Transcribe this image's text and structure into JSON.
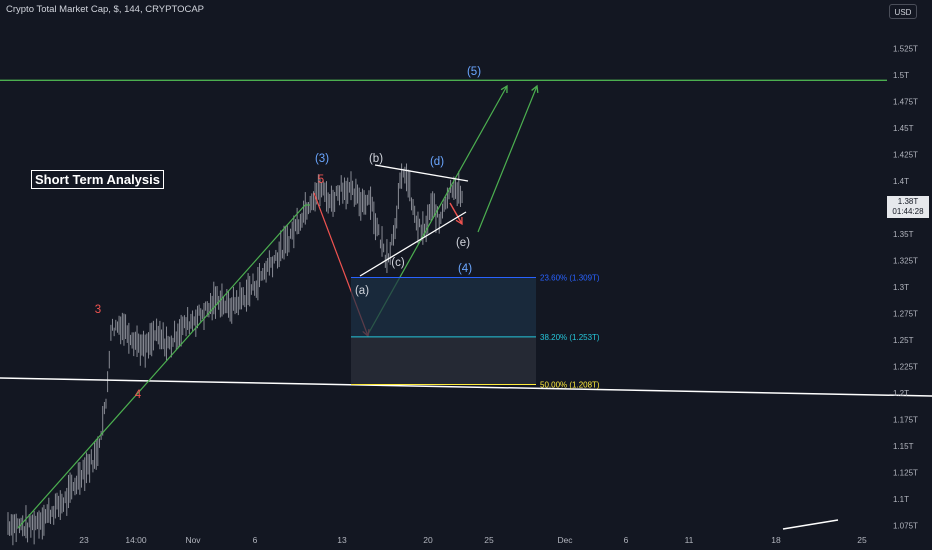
{
  "header": {
    "symbol_title": "Crypto Total Market Cap, $, 144, CRYPTOCAP",
    "currency_label": "USD"
  },
  "annotation": {
    "box_label": "Short Term Analysis"
  },
  "price_tag": {
    "price": "1.38T",
    "countdown": "01:44:28"
  },
  "chart_data": {
    "type": "candlestick",
    "x_tick_labels": [
      "23",
      "14:00",
      "Nov",
      "6",
      "13",
      "20",
      "25",
      "Dec",
      "6",
      "11",
      "18",
      "25"
    ],
    "y_tick_labels": [
      "1.075T",
      "1.1T",
      "1.125T",
      "1.15T",
      "1.175T",
      "1.2T",
      "1.225T",
      "1.25T",
      "1.275T",
      "1.3T",
      "1.325T",
      "1.35T",
      "1.375T",
      "1.4T",
      "1.425T",
      "1.45T",
      "1.475T",
      "1.5T",
      "1.525T"
    ],
    "y_unit": "T USD",
    "ylim": [
      1.07,
      1.535
    ],
    "price_path": [
      [
        0,
        1.077
      ],
      [
        4,
        1.073
      ],
      [
        8,
        1.085
      ],
      [
        12,
        1.1
      ],
      [
        15,
        1.125
      ],
      [
        18,
        1.14
      ],
      [
        20,
        1.19
      ],
      [
        21,
        1.26
      ],
      [
        23,
        1.265
      ],
      [
        26,
        1.25
      ],
      [
        28,
        1.24
      ],
      [
        30,
        1.255
      ],
      [
        33,
        1.245
      ],
      [
        35,
        1.26
      ],
      [
        38,
        1.27
      ],
      [
        41,
        1.28
      ],
      [
        43,
        1.29
      ],
      [
        45,
        1.28
      ],
      [
        48,
        1.29
      ],
      [
        51,
        1.305
      ],
      [
        53,
        1.32
      ],
      [
        56,
        1.335
      ],
      [
        59,
        1.36
      ],
      [
        62,
        1.385
      ],
      [
        64,
        1.392
      ],
      [
        66,
        1.38
      ],
      [
        68,
        1.395
      ],
      [
        70,
        1.39
      ],
      [
        72,
        1.38
      ],
      [
        74,
        1.385
      ],
      [
        75,
        1.36
      ],
      [
        76,
        1.345
      ],
      [
        77,
        1.33
      ],
      [
        78,
        1.335
      ],
      [
        79,
        1.36
      ],
      [
        80,
        1.395
      ],
      [
        81,
        1.41
      ],
      [
        82,
        1.39
      ],
      [
        83,
        1.365
      ],
      [
        84,
        1.355
      ],
      [
        85,
        1.35
      ],
      [
        86,
        1.37
      ],
      [
        87,
        1.375
      ],
      [
        88,
        1.36
      ],
      [
        89,
        1.38
      ],
      [
        90,
        1.39
      ],
      [
        91,
        1.398
      ],
      [
        92,
        1.39
      ],
      [
        93,
        1.38
      ]
    ],
    "horizontal_lines": [
      {
        "y": 1.495,
        "color": "#4caf50"
      }
    ],
    "fib_levels": [
      {
        "label": "23.60% (1.309T)",
        "value": 1.309,
        "color": "#2962ff"
      },
      {
        "label": "38.20% (1.253T)",
        "value": 1.253,
        "color": "#26c6da"
      },
      {
        "label": "50.00% (1.208T)",
        "value": 1.208,
        "color": "#ffeb3b"
      }
    ],
    "wave_labels": [
      {
        "text": "3",
        "color": "#ef5350"
      },
      {
        "text": "4",
        "color": "#ef5350"
      },
      {
        "text": "5",
        "color": "#ef5350"
      },
      {
        "text": "(3)",
        "color": "#6aa6ff"
      },
      {
        "text": "(a)",
        "color": "#d1d4dc"
      },
      {
        "text": "(b)",
        "color": "#d1d4dc"
      },
      {
        "text": "(c)",
        "color": "#d1d4dc"
      },
      {
        "text": "(d)",
        "color": "#6aa6ff"
      },
      {
        "text": "(e)",
        "color": "#d1d4dc"
      },
      {
        "text": "(4)",
        "color": "#6aa6ff"
      },
      {
        "text": "(5)",
        "color": "#6aa6ff"
      }
    ],
    "colors": {
      "background": "#131722",
      "candle": "#9598a1",
      "green": "#4caf50",
      "red": "#ef5350",
      "white": "#ffffff",
      "axis_text": "#b2b5be"
    }
  }
}
